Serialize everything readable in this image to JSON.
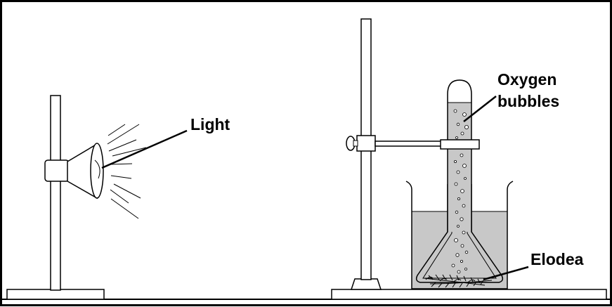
{
  "labels": {
    "light": "Light",
    "oxygen_line1": "Oxygen",
    "oxygen_line2": "bubbles",
    "elodea": "Elodea"
  },
  "colors": {
    "water": "#c8c8c8",
    "outline": "#000000",
    "background": "#ffffff",
    "stand": "#ffffff"
  }
}
